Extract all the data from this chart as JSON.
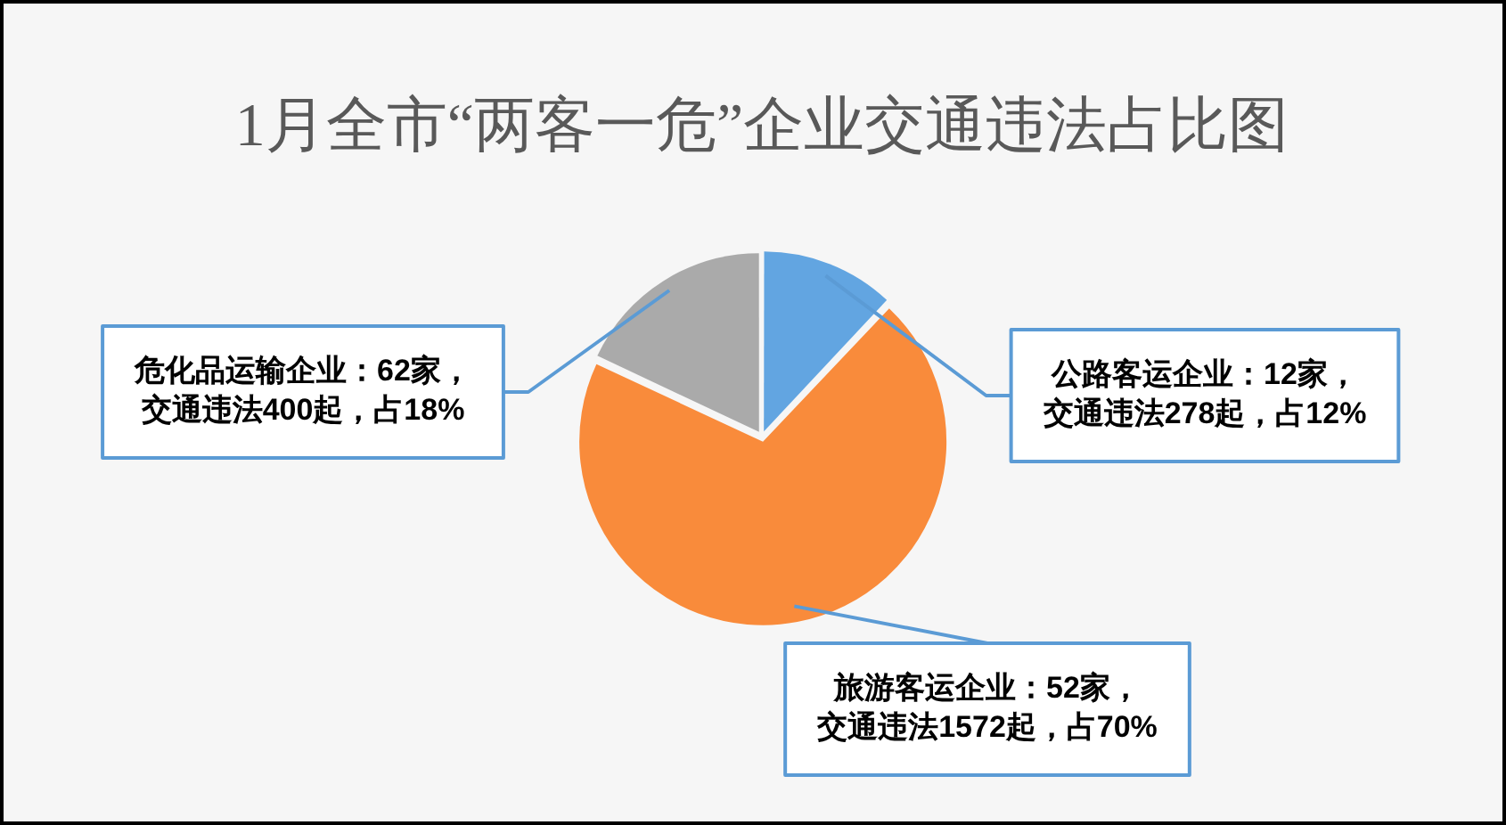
{
  "chart_data": {
    "type": "pie",
    "title": "1月全市“两客一危”企业交通违法占比图",
    "categories": [
      "公路客运企业：12家，交通违法278起，占12%",
      "旅游客运企业：52家，交通违法1572起，占70%",
      "危化品运输企业：62家，交通违法400起，占18%"
    ],
    "values": [
      12,
      70,
      18
    ],
    "colors": [
      "#62a5e1",
      "#f98b3b",
      "#aaaaaa"
    ]
  }
}
